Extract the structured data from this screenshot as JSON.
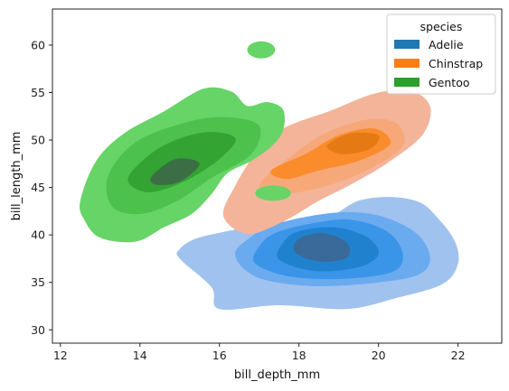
{
  "chart_data": {
    "type": "kde",
    "xlabel": "bill_depth_mm",
    "ylabel": "bill_length_mm",
    "xlim": [
      11.8,
      23.1
    ],
    "ylim": [
      28.6,
      63.8
    ],
    "xticks": [
      12,
      14,
      16,
      18,
      20,
      22
    ],
    "yticks": [
      30,
      35,
      40,
      45,
      50,
      55,
      60
    ],
    "grid": false,
    "legend": {
      "title": "species",
      "placement": "top-right",
      "entries": [
        "Adelie",
        "Chinstrap",
        "Gentoo"
      ]
    },
    "series": [
      {
        "name": "Adelie",
        "color": "#1f77b4",
        "levels": [
          {
            "fill": "#a0c2ef",
            "points": [
              [
                15.0,
                37.5
              ],
              [
                15.8,
                34.5
              ],
              [
                16.0,
                32.2
              ],
              [
                17.5,
                32.6
              ],
              [
                19.2,
                32.2
              ],
              [
                20.4,
                33.3
              ],
              [
                21.6,
                34.8
              ],
              [
                22.0,
                37.0
              ],
              [
                21.9,
                39.5
              ],
              [
                21.4,
                42.2
              ],
              [
                21.0,
                43.5
              ],
              [
                20.3,
                44.0
              ],
              [
                19.5,
                43.6
              ],
              [
                18.8,
                42.0
              ],
              [
                18.0,
                41.3
              ],
              [
                17.0,
                41.0
              ],
              [
                16.2,
                40.4
              ],
              [
                15.4,
                39.6
              ],
              [
                15.0,
                38.5
              ]
            ]
          },
          {
            "fill": "#6aaaef",
            "points": [
              [
                16.6,
                36.5
              ],
              [
                17.2,
                35.2
              ],
              [
                18.5,
                34.6
              ],
              [
                20.0,
                35.0
              ],
              [
                21.0,
                35.8
              ],
              [
                21.3,
                37.5
              ],
              [
                21.0,
                40.0
              ],
              [
                20.2,
                41.8
              ],
              [
                19.3,
                42.4
              ],
              [
                18.3,
                42.0
              ],
              [
                17.3,
                41.0
              ],
              [
                16.8,
                39.8
              ],
              [
                16.4,
                38.2
              ]
            ]
          },
          {
            "fill": "#3a95e8",
            "points": [
              [
                16.9,
                37.0
              ],
              [
                17.8,
                35.6
              ],
              [
                19.2,
                35.4
              ],
              [
                20.4,
                36.2
              ],
              [
                20.6,
                38.2
              ],
              [
                20.2,
                40.4
              ],
              [
                19.3,
                41.6
              ],
              [
                18.3,
                41.2
              ],
              [
                17.4,
                40.2
              ],
              [
                17.0,
                38.8
              ]
            ]
          },
          {
            "fill": "#2082cf",
            "points": [
              [
                17.5,
                37.4
              ],
              [
                18.4,
                36.2
              ],
              [
                19.5,
                36.6
              ],
              [
                20.0,
                38.0
              ],
              [
                19.7,
                39.8
              ],
              [
                18.9,
                40.8
              ],
              [
                18.0,
                40.4
              ],
              [
                17.6,
                39.2
              ]
            ]
          },
          {
            "fill": "#3a6a99",
            "points": [
              [
                17.9,
                38.2
              ],
              [
                18.5,
                37.2
              ],
              [
                19.2,
                37.6
              ],
              [
                19.2,
                39.2
              ],
              [
                18.6,
                40.2
              ],
              [
                18.0,
                39.6
              ]
            ]
          }
        ]
      },
      {
        "name": "Chinstrap",
        "color": "#ff7f0e",
        "levels": [
          {
            "fill": "#f4b499",
            "points": [
              [
                16.1,
                42.0
              ],
              [
                16.4,
                45.2
              ],
              [
                16.9,
                48.5
              ],
              [
                17.6,
                51.2
              ],
              [
                18.8,
                53.1
              ],
              [
                19.9,
                54.9
              ],
              [
                20.8,
                55.2
              ],
              [
                21.3,
                53.5
              ],
              [
                21.1,
                50.5
              ],
              [
                20.2,
                47.5
              ],
              [
                19.3,
                45.3
              ],
              [
                18.5,
                43.6
              ],
              [
                17.6,
                41.4
              ],
              [
                16.7,
                40.1
              ]
            ]
          },
          {
            "fill": "#f7a879",
            "points": [
              [
                17.0,
                45.2
              ],
              [
                17.8,
                48.3
              ],
              [
                18.7,
                50.8
              ],
              [
                19.8,
                52.2
              ],
              [
                20.5,
                51.6
              ],
              [
                20.6,
                49.3
              ],
              [
                19.8,
                47.0
              ],
              [
                18.8,
                45.3
              ],
              [
                17.6,
                44.3
              ]
            ]
          },
          {
            "fill": "#fb8c2c",
            "points": [
              [
                17.3,
                46.8
              ],
              [
                18.2,
                48.6
              ],
              [
                19.0,
                50.5
              ],
              [
                19.9,
                51.2
              ],
              [
                20.3,
                49.6
              ],
              [
                19.5,
                47.8
              ],
              [
                18.5,
                46.8
              ],
              [
                17.7,
                45.9
              ]
            ]
          },
          {
            "fill": "#e57a14",
            "points": [
              [
                18.7,
                49.4
              ],
              [
                19.3,
                50.7
              ],
              [
                20.0,
                50.5
              ],
              [
                19.8,
                49.1
              ],
              [
                19.1,
                48.5
              ]
            ]
          }
        ]
      },
      {
        "name": "Gentoo",
        "color": "#2ca02c",
        "levels": [
          {
            "fill": "#67d467",
            "points": [
              [
                12.5,
                43.6
              ],
              [
                12.9,
                47.8
              ],
              [
                13.6,
                50.7
              ],
              [
                14.6,
                53.0
              ],
              [
                15.6,
                55.4
              ],
              [
                16.3,
                55.1
              ],
              [
                16.7,
                53.6
              ],
              [
                17.2,
                54.0
              ],
              [
                17.6,
                53.2
              ],
              [
                17.6,
                51.0
              ],
              [
                17.3,
                49.3
              ],
              [
                16.8,
                47.8
              ],
              [
                16.2,
                46.5
              ],
              [
                15.8,
                44.3
              ],
              [
                15.3,
                42.2
              ],
              [
                14.6,
                40.8
              ],
              [
                13.9,
                39.3
              ],
              [
                13.0,
                39.7
              ],
              [
                12.6,
                41.6
              ]
            ]
          },
          {
            "fill": "#4cc24c",
            "points": [
              [
                13.2,
                46.2
              ],
              [
                13.9,
                49.8
              ],
              [
                15.2,
                51.9
              ],
              [
                16.2,
                52.4
              ],
              [
                17.0,
                51.5
              ],
              [
                16.8,
                48.5
              ],
              [
                15.8,
                46.0
              ],
              [
                14.9,
                43.5
              ],
              [
                14.0,
                42.2
              ],
              [
                13.3,
                43.0
              ]
            ]
          },
          {
            "fill": "#33a333",
            "points": [
              [
                13.7,
                46.0
              ],
              [
                14.5,
                49.2
              ],
              [
                15.6,
                50.8
              ],
              [
                16.4,
                50.2
              ],
              [
                16.0,
                48.0
              ],
              [
                15.1,
                45.6
              ],
              [
                14.2,
                44.5
              ]
            ]
          },
          {
            "fill": "#3b6e45",
            "points": [
              [
                14.3,
                46.2
              ],
              [
                14.9,
                48.0
              ],
              [
                15.5,
                47.5
              ],
              [
                15.0,
                45.6
              ],
              [
                14.4,
                45.3
              ]
            ]
          }
        ],
        "islands": [
          {
            "fill": "#67d467",
            "center": [
              17.05,
              59.5
            ],
            "radius": [
              0.35,
              0.9
            ]
          },
          {
            "fill": "#67d467",
            "center": [
              17.35,
              44.4
            ],
            "radius": [
              0.45,
              0.8
            ]
          }
        ]
      }
    ]
  }
}
